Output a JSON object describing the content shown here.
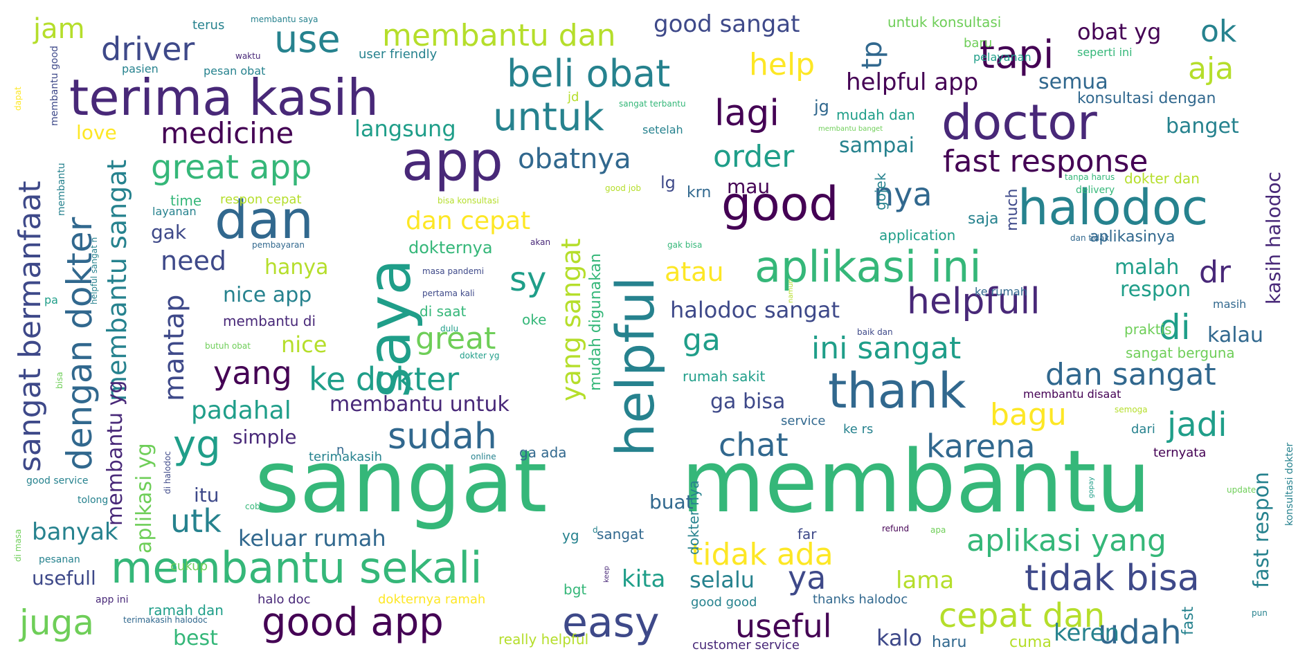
{
  "palette": {
    "dark_purple": "#440154",
    "purple": "#482878",
    "indigo": "#3e4989",
    "blue": "#31688e",
    "teal": "#26828e",
    "green_teal": "#1f9e89",
    "green": "#35b779",
    "light_green": "#6ece58",
    "lime": "#b5de2b",
    "yellow": "#fde725"
  },
  "words": [
    {
      "text": "sangat",
      "color": "#35b779"
    },
    {
      "text": "membantu",
      "color": "#35b779"
    },
    {
      "text": "saya",
      "color": "#1f9e89"
    },
    {
      "text": "helpful",
      "color": "#26828e"
    },
    {
      "text": "app",
      "color": "#482878"
    },
    {
      "text": "terima kasih",
      "color": "#482878"
    },
    {
      "text": "doctor",
      "color": "#482878"
    },
    {
      "text": "dan",
      "color": "#31688e"
    },
    {
      "text": "good",
      "color": "#440154"
    },
    {
      "text": "halodoc",
      "color": "#26828e"
    },
    {
      "text": "thank",
      "color": "#31688e"
    },
    {
      "text": "membantu sekali",
      "color": "#35b779"
    },
    {
      "text": "aplikasi ini",
      "color": "#35b779"
    },
    {
      "text": "good app",
      "color": "#440154"
    },
    {
      "text": "easy",
      "color": "#3e4989"
    },
    {
      "text": "tidak bisa",
      "color": "#3e4989"
    },
    {
      "text": "juga",
      "color": "#6ece58"
    },
    {
      "text": "beli obat",
      "color": "#26828e"
    },
    {
      "text": "untuk",
      "color": "#26828e"
    },
    {
      "text": "tapi",
      "color": "#440154"
    },
    {
      "text": "yg",
      "color": "#1f9e89"
    },
    {
      "text": "sudah",
      "color": "#31688e"
    },
    {
      "text": "use",
      "color": "#26828e"
    },
    {
      "text": "lagi",
      "color": "#440154"
    },
    {
      "text": "helpfull",
      "color": "#482878"
    },
    {
      "text": "fast response",
      "color": "#440154"
    },
    {
      "text": "dengan dokter",
      "color": "#31688e"
    },
    {
      "text": "sangat bermanfaat",
      "color": "#3e4989"
    },
    {
      "text": "great app",
      "color": "#35b779"
    },
    {
      "text": "aplikasi yang",
      "color": "#35b779"
    },
    {
      "text": "cepat dan",
      "color": "#b5de2b"
    },
    {
      "text": "udah",
      "color": "#31688e"
    },
    {
      "text": "useful",
      "color": "#440154"
    },
    {
      "text": "tidak ada",
      "color": "#fde725"
    },
    {
      "text": "ke dokter",
      "color": "#1f9e89"
    },
    {
      "text": "karena",
      "color": "#31688e"
    },
    {
      "text": "chat",
      "color": "#31688e"
    },
    {
      "text": "dan sangat",
      "color": "#31688e"
    },
    {
      "text": "ini sangat",
      "color": "#1f9e89"
    },
    {
      "text": "driver",
      "color": "#3e4989"
    },
    {
      "text": "medicine",
      "color": "#440154"
    },
    {
      "text": "membantu dan",
      "color": "#b5de2b"
    },
    {
      "text": "order",
      "color": "#1f9e89"
    },
    {
      "text": "obatnya",
      "color": "#31688e"
    },
    {
      "text": "help",
      "color": "#fde725"
    },
    {
      "text": "ok",
      "color": "#26828e"
    },
    {
      "text": "aja",
      "color": "#b5de2b"
    },
    {
      "text": "nya",
      "color": "#31688e"
    },
    {
      "text": "sy",
      "color": "#1f9e89"
    },
    {
      "text": "di",
      "color": "#1f9e89"
    },
    {
      "text": "dr",
      "color": "#482878"
    },
    {
      "text": "jadi",
      "color": "#1f9e89"
    },
    {
      "text": "bagu",
      "color": "#fde725"
    },
    {
      "text": "ya",
      "color": "#3e4989"
    },
    {
      "text": "utk",
      "color": "#26828e"
    },
    {
      "text": "yang",
      "color": "#440154"
    },
    {
      "text": "great",
      "color": "#6ece58"
    },
    {
      "text": "mantap",
      "color": "#3e4989"
    },
    {
      "text": "membantu sangat",
      "color": "#26828e"
    },
    {
      "text": "membantu yg",
      "color": "#482878"
    },
    {
      "text": "yang sangat",
      "color": "#b5de2b"
    },
    {
      "text": "tp",
      "color": "#31688e"
    },
    {
      "text": "jam",
      "color": "#b5de2b"
    },
    {
      "text": "good sangat",
      "color": "#3e4989"
    },
    {
      "text": "need",
      "color": "#3e4989"
    },
    {
      "text": "padahal",
      "color": "#1f9e89"
    },
    {
      "text": "banyak",
      "color": "#26828e"
    },
    {
      "text": "keluar rumah",
      "color": "#31688e"
    },
    {
      "text": "kita",
      "color": "#1f9e89"
    },
    {
      "text": "selalu",
      "color": "#26828e"
    },
    {
      "text": "lama",
      "color": "#b5de2b"
    },
    {
      "text": "kalo",
      "color": "#3e4989"
    },
    {
      "text": "keren",
      "color": "#26828e"
    },
    {
      "text": "best",
      "color": "#35b779"
    },
    {
      "text": "usefull",
      "color": "#3e4989"
    },
    {
      "text": "ga",
      "color": "#1f9e89"
    },
    {
      "text": "atau",
      "color": "#fde725"
    },
    {
      "text": "halodoc sangat",
      "color": "#3e4989"
    },
    {
      "text": "ga bisa",
      "color": "#3e4989"
    },
    {
      "text": "membantu untuk",
      "color": "#482878"
    },
    {
      "text": "dan cepat",
      "color": "#fde725"
    },
    {
      "text": "langsung",
      "color": "#1f9e89"
    },
    {
      "text": "helpful app",
      "color": "#440154"
    },
    {
      "text": "semua",
      "color": "#31688e"
    },
    {
      "text": "obat yg",
      "color": "#440154"
    },
    {
      "text": "banget",
      "color": "#26828e"
    },
    {
      "text": "sampai",
      "color": "#26828e"
    },
    {
      "text": "nice app",
      "color": "#26828e"
    },
    {
      "text": "nice",
      "color": "#b5de2b"
    },
    {
      "text": "hanya",
      "color": "#b5de2b"
    },
    {
      "text": "itu",
      "color": "#3e4989"
    },
    {
      "text": "simple",
      "color": "#482878"
    },
    {
      "text": "buat",
      "color": "#31688e"
    },
    {
      "text": "malah",
      "color": "#1f9e89"
    },
    {
      "text": "respon",
      "color": "#1f9e89"
    },
    {
      "text": "kalau",
      "color": "#31688e"
    },
    {
      "text": "gak",
      "color": "#3e4989"
    },
    {
      "text": "love",
      "color": "#fde725"
    },
    {
      "text": "mau",
      "color": "#440154"
    },
    {
      "text": "kasih halodoc",
      "color": "#482878"
    },
    {
      "text": "fast respon",
      "color": "#26828e"
    },
    {
      "text": "aplikasi yg",
      "color": "#6ece58"
    },
    {
      "text": "lg",
      "color": "#3e4989"
    },
    {
      "text": "krn",
      "color": "#31688e"
    },
    {
      "text": "jg",
      "color": "#31688e"
    },
    {
      "text": "dokternya",
      "color": "#35b779"
    },
    {
      "text": "mudah digunakan",
      "color": "#35b779"
    },
    {
      "text": "dokter nya",
      "color": "#26828e"
    },
    {
      "text": "cuma",
      "color": "#b5de2b"
    },
    {
      "text": "haru",
      "color": "#31688e"
    },
    {
      "text": "fast",
      "color": "#26828e"
    },
    {
      "text": "saja",
      "color": "#26828e"
    },
    {
      "text": "much",
      "color": "#3e4989"
    },
    {
      "text": "gojek",
      "color": "#26828e"
    },
    {
      "text": "application",
      "color": "#1f9e89"
    },
    {
      "text": "aplikasinya",
      "color": "#31688e"
    },
    {
      "text": "konsultasi dengan",
      "color": "#31688e"
    },
    {
      "text": "mudah dan",
      "color": "#1f9e89"
    },
    {
      "text": "membantu di",
      "color": "#482878"
    },
    {
      "text": "dokter dan",
      "color": "#b5de2b"
    },
    {
      "text": "respon cepat",
      "color": "#b5de2b"
    },
    {
      "text": "time",
      "color": "#35b779"
    },
    {
      "text": "bgt",
      "color": "#35b779"
    },
    {
      "text": "ga ada",
      "color": "#31688e"
    },
    {
      "text": "customer service",
      "color": "#482878"
    },
    {
      "text": "ramah dan",
      "color": "#1f9e89"
    },
    {
      "text": "halo doc",
      "color": "#482878"
    },
    {
      "text": "really helpful",
      "color": "#b5de2b"
    },
    {
      "text": "dokternya ramah",
      "color": "#fde725"
    },
    {
      "text": "good good",
      "color": "#26828e"
    },
    {
      "text": "thanks halodoc",
      "color": "#31688e"
    },
    {
      "text": "cukup",
      "color": "#6ece58"
    },
    {
      "text": "sangat",
      "color": "#31688e"
    },
    {
      "text": "yg",
      "color": "#26828e"
    },
    {
      "text": "far",
      "color": "#3e4989"
    },
    {
      "text": "oke",
      "color": "#35b779"
    },
    {
      "text": "di saat",
      "color": "#35b779"
    },
    {
      "text": "praktis",
      "color": "#6ece58"
    },
    {
      "text": "sangat berguna",
      "color": "#6ece58"
    },
    {
      "text": "rumah sakit",
      "color": "#1f9e89"
    },
    {
      "text": "service",
      "color": "#31688e"
    },
    {
      "text": "ke rs",
      "color": "#26828e"
    },
    {
      "text": "dari",
      "color": "#26828e"
    },
    {
      "text": "ternyata",
      "color": "#440154"
    },
    {
      "text": "terimakasih",
      "color": "#26828e"
    },
    {
      "text": "membantu disaat",
      "color": "#440154"
    },
    {
      "text": "masih",
      "color": "#31688e"
    },
    {
      "text": "ke rumah",
      "color": "#31688e"
    },
    {
      "text": "untuk konsultasi",
      "color": "#6ece58"
    },
    {
      "text": "user friendly",
      "color": "#26828e"
    },
    {
      "text": "terus",
      "color": "#26828e"
    },
    {
      "text": "pesan obat",
      "color": "#26828e"
    },
    {
      "text": "pasien",
      "color": "#26828e"
    },
    {
      "text": "layanan",
      "color": "#26828e"
    },
    {
      "text": "baru",
      "color": "#6ece58"
    },
    {
      "text": "pelayanan",
      "color": "#1f9e89"
    },
    {
      "text": "seperti ini",
      "color": "#35b779"
    },
    {
      "text": "setelah",
      "color": "#26828e"
    },
    {
      "text": "delivery",
      "color": "#35b779"
    },
    {
      "text": "tanpa harus",
      "color": "#35b779"
    },
    {
      "text": "sangat terbantu",
      "color": "#35b779"
    },
    {
      "text": "membantu banget",
      "color": "#6ece58"
    },
    {
      "text": "good job",
      "color": "#b5de2b"
    },
    {
      "text": "bisa konsultasi",
      "color": "#b5de2b"
    },
    {
      "text": "membantu saya",
      "color": "#26828e"
    },
    {
      "text": "waktu",
      "color": "#482878"
    },
    {
      "text": "jd",
      "color": "#b5de2b"
    },
    {
      "text": "pembayaran",
      "color": "#31688e"
    },
    {
      "text": "masa pandemi",
      "color": "#3e4989"
    },
    {
      "text": "pertama kali",
      "color": "#3e4989"
    },
    {
      "text": "dulu",
      "color": "#1f9e89"
    },
    {
      "text": "dokter yg",
      "color": "#1f9e89"
    },
    {
      "text": "akan",
      "color": "#482878"
    },
    {
      "text": "gak bisa",
      "color": "#35b779"
    },
    {
      "text": "dan tidak",
      "color": "#31688e"
    },
    {
      "text": "baik dan",
      "color": "#3e4989"
    },
    {
      "text": "namun",
      "color": "#b5de2b"
    },
    {
      "text": "semoga",
      "color": "#b5de2b"
    },
    {
      "text": "online",
      "color": "#26828e"
    },
    {
      "text": "refund",
      "color": "#440154"
    },
    {
      "text": "apa",
      "color": "#6ece58"
    },
    {
      "text": "update",
      "color": "#6ece58"
    },
    {
      "text": "keep",
      "color": "#482878"
    },
    {
      "text": "coba",
      "color": "#35b779"
    },
    {
      "text": "gopay",
      "color": "#1f9e89"
    },
    {
      "text": "konsultasi dokter",
      "color": "#26828e"
    },
    {
      "text": "pun",
      "color": "#26828e"
    },
    {
      "text": "good service",
      "color": "#26828e"
    },
    {
      "text": "tolong",
      "color": "#26828e"
    },
    {
      "text": "pesanan",
      "color": "#26828e"
    },
    {
      "text": "app ini",
      "color": "#482878"
    },
    {
      "text": "terimakasih halodoc",
      "color": "#31688e"
    },
    {
      "text": "di halodoc",
      "color": "#3e4989"
    },
    {
      "text": "butuh obat",
      "color": "#6ece58"
    },
    {
      "text": "n",
      "color": "#31688e"
    },
    {
      "text": "d",
      "color": "#26828e"
    },
    {
      "text": "dapat",
      "color": "#fde725"
    },
    {
      "text": "membantu good",
      "color": "#3e4989"
    },
    {
      "text": "membantu",
      "color": "#26828e"
    },
    {
      "text": "helpful sangat n",
      "color": "#26828e"
    },
    {
      "text": "pa",
      "color": "#1f9e89"
    },
    {
      "text": "bisa",
      "color": "#6ece58"
    },
    {
      "text": "di masa",
      "color": "#6ece58"
    }
  ]
}
